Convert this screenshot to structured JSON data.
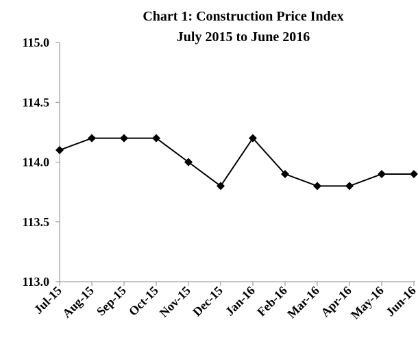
{
  "chart_data": {
    "type": "line",
    "title": "Chart 1: Construction Price Index",
    "subtitle": "July 2015 to June 2016",
    "categories": [
      "Jul-15",
      "Aug-15",
      "Sep-15",
      "Oct-15",
      "Nov-15",
      "Dec-15",
      "Jan-16",
      "Feb-16",
      "Mar-16",
      "Apr-16",
      "May-16",
      "Jun-16"
    ],
    "values": [
      114.1,
      114.2,
      114.2,
      114.2,
      114.0,
      113.8,
      114.2,
      113.9,
      113.8,
      113.8,
      113.9,
      113.9
    ],
    "color": "#000000",
    "ylim": [
      113,
      115
    ],
    "yticks": [
      {
        "value": 113,
        "label": "113.0"
      },
      113.5,
      {
        "value": 114,
        "label": "114.0"
      },
      114.5,
      {
        "value": 115,
        "label": "115.0"
      }
    ],
    "grid": false
  }
}
